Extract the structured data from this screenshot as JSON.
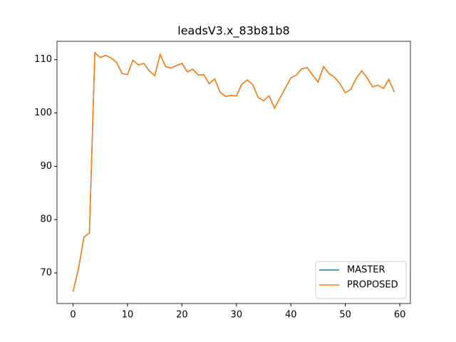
{
  "chart_data": {
    "type": "line",
    "title": "leadsV3.x_83b81b8",
    "x": [
      0,
      1,
      2,
      3,
      4,
      5,
      6,
      7,
      8,
      9,
      10,
      11,
      12,
      13,
      14,
      15,
      16,
      17,
      18,
      19,
      20,
      21,
      22,
      23,
      24,
      25,
      26,
      27,
      28,
      29,
      30,
      31,
      32,
      33,
      34,
      35,
      36,
      37,
      38,
      39,
      40,
      41,
      42,
      43,
      44,
      45,
      46,
      47,
      48,
      49,
      50,
      51,
      52,
      53,
      54,
      55,
      56,
      57,
      58,
      59
    ],
    "series": [
      {
        "name": "MASTER",
        "color": "#1f77b4",
        "values": [
          66.5,
          70.8,
          76.7,
          77.5,
          111.3,
          110.4,
          110.8,
          110.3,
          109.5,
          107.4,
          107.2,
          109.9,
          109.0,
          109.3,
          107.9,
          107.0,
          111.0,
          108.7,
          108.4,
          108.9,
          109.3,
          107.7,
          108.2,
          107.1,
          107.2,
          105.5,
          106.4,
          103.9,
          103.1,
          103.3,
          103.2,
          105.4,
          106.2,
          105.3,
          102.9,
          102.3,
          103.2,
          100.9,
          102.8,
          104.7,
          106.6,
          107.1,
          108.3,
          108.5,
          107.1,
          105.8,
          108.7,
          107.4,
          106.7,
          105.5,
          103.8,
          104.4,
          106.5,
          107.9,
          106.6,
          104.9,
          105.2,
          104.6,
          106.3,
          103.9
        ]
      },
      {
        "name": "PROPOSED",
        "color": "#ff7f0e",
        "values": [
          66.5,
          70.8,
          76.7,
          77.5,
          111.3,
          110.4,
          110.8,
          110.3,
          109.5,
          107.4,
          107.2,
          109.9,
          109.0,
          109.3,
          107.9,
          107.0,
          111.0,
          108.7,
          108.4,
          108.9,
          109.3,
          107.7,
          108.2,
          107.1,
          107.2,
          105.5,
          106.4,
          103.9,
          103.1,
          103.3,
          103.2,
          105.4,
          106.2,
          105.3,
          102.9,
          102.3,
          103.2,
          100.9,
          102.8,
          104.7,
          106.6,
          107.1,
          108.3,
          108.5,
          107.1,
          105.8,
          108.7,
          107.4,
          106.7,
          105.5,
          103.8,
          104.4,
          106.5,
          107.9,
          106.6,
          104.9,
          105.2,
          104.6,
          106.3,
          103.9
        ]
      }
    ],
    "xlim": [
      -2.95,
      61.95
    ],
    "xticks": [
      0,
      10,
      20,
      30,
      40,
      50,
      60
    ],
    "ylim": [
      64.26,
      113.44
    ],
    "yticks": [
      70,
      80,
      90,
      100,
      110
    ],
    "legend": "lower right"
  }
}
